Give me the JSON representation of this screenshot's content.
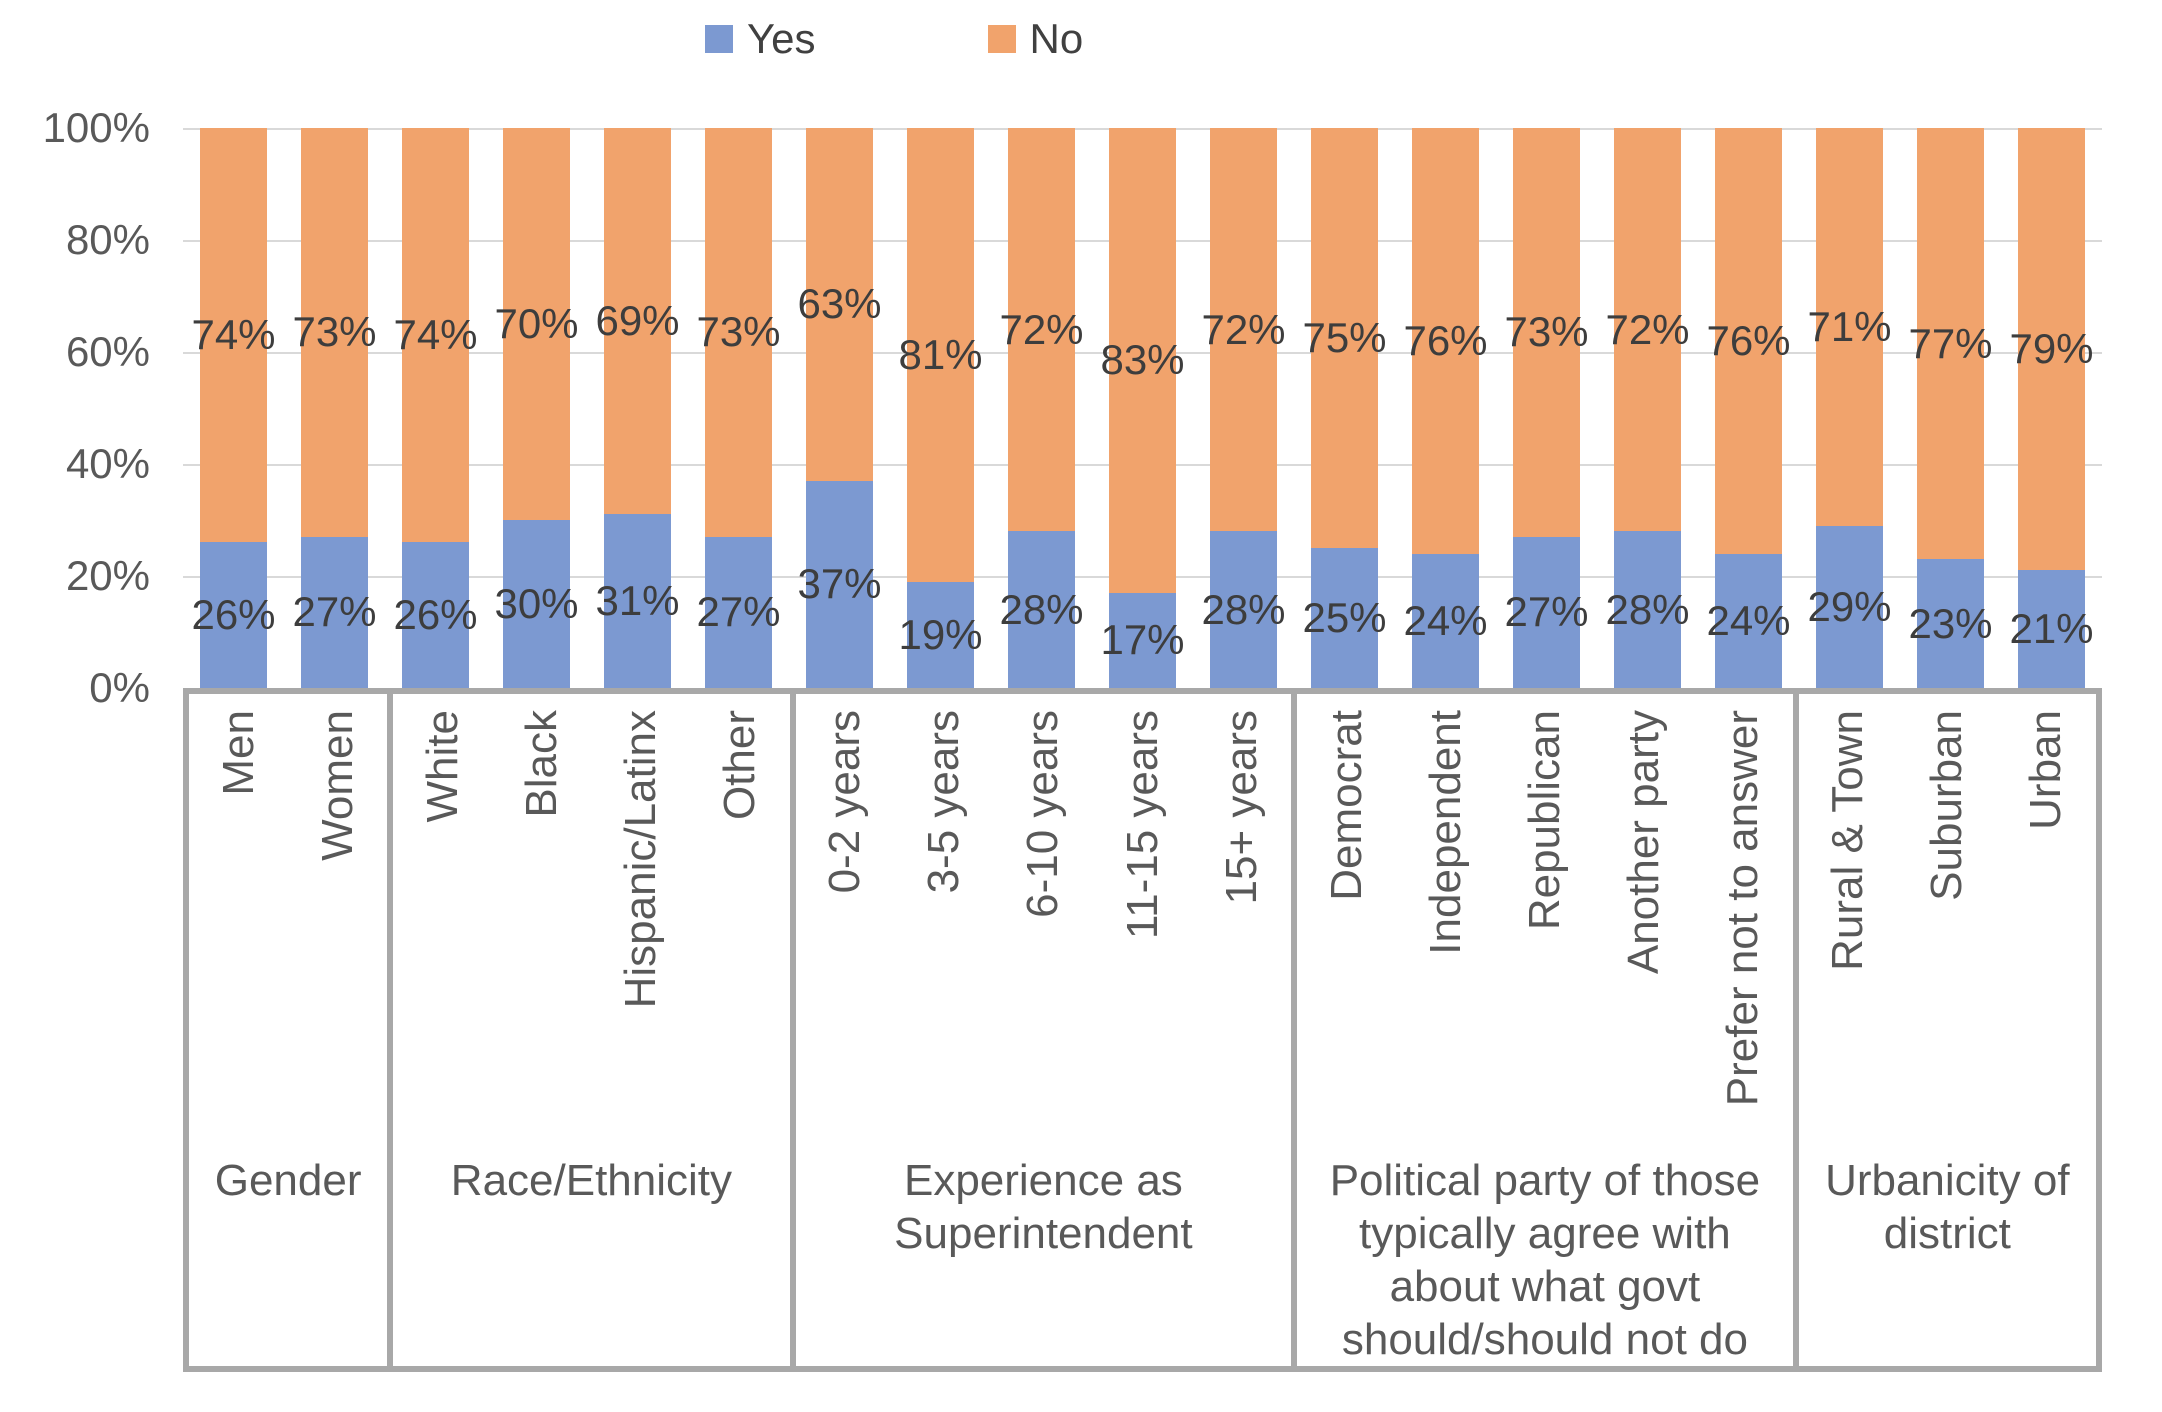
{
  "legend": {
    "items": [
      {
        "label": "Yes",
        "color": "#7C99D1"
      },
      {
        "label": "No",
        "color": "#F1A36C"
      }
    ]
  },
  "y_axis": {
    "ticks": [
      {
        "value": 100,
        "label": "100%"
      },
      {
        "value": 80,
        "label": "80%"
      },
      {
        "value": 60,
        "label": "60%"
      },
      {
        "value": 40,
        "label": "40%"
      },
      {
        "value": 20,
        "label": "20%"
      },
      {
        "value": 0,
        "label": "0%"
      }
    ]
  },
  "colors": {
    "yes": "#7C99D1",
    "no": "#F1A36C",
    "gridline": "#D9D9D9",
    "box_border": "#A8A8A8",
    "data_label_text": "#3D3D3D",
    "axis_text": "#595959"
  },
  "chart_data": {
    "type": "bar",
    "stacked": true,
    "percent_stacked": true,
    "unit": "percent",
    "ylim": [
      0,
      100
    ],
    "grid": true,
    "legend_position": "top",
    "series_names": [
      "Yes",
      "No"
    ],
    "groups": [
      {
        "label": "Gender",
        "categories": [
          "Men",
          "Women"
        ],
        "yes": [
          26,
          27
        ],
        "no": [
          74,
          73
        ],
        "yes_labels": [
          "26%",
          "27%"
        ],
        "no_labels": [
          "74%",
          "73%"
        ]
      },
      {
        "label": "Race/Ethnicity",
        "categories": [
          "White",
          "Black",
          "Hispanic/Latinx",
          "Other"
        ],
        "yes": [
          26,
          30,
          31,
          27
        ],
        "no": [
          74,
          70,
          69,
          73
        ],
        "yes_labels": [
          "26%",
          "30%",
          "31%",
          "27%"
        ],
        "no_labels": [
          "74%",
          "70%",
          "69%",
          "73%"
        ]
      },
      {
        "label": "Experience as Superintendent",
        "categories": [
          "0-2 years",
          "3-5 years",
          "6-10 years",
          "11-15 years",
          "15+ years"
        ],
        "yes": [
          37,
          19,
          28,
          17,
          28
        ],
        "no": [
          63,
          81,
          72,
          83,
          72
        ],
        "yes_labels": [
          "37%",
          "19%",
          "28%",
          "17%",
          "28%"
        ],
        "no_labels": [
          "63%",
          "81%",
          "72%",
          "83%",
          "72%"
        ]
      },
      {
        "label": "Political party of those typically agree with about what govt should/should not do",
        "categories": [
          "Democrat",
          "Independent",
          "Republican",
          "Another party",
          "Prefer not to answer"
        ],
        "yes": [
          25,
          24,
          27,
          28,
          24
        ],
        "no": [
          75,
          76,
          73,
          72,
          76
        ],
        "yes_labels": [
          "25%",
          "24%",
          "27%",
          "28%",
          "24%"
        ],
        "no_labels": [
          "75%",
          "76%",
          "73%",
          "72%",
          "76%"
        ]
      },
      {
        "label": "Urbanicity of district",
        "categories": [
          "Rural & Town",
          "Suburban",
          "Urban"
        ],
        "yes": [
          29,
          23,
          21
        ],
        "no": [
          71,
          77,
          79
        ],
        "yes_labels": [
          "29%",
          "23%",
          "21%"
        ],
        "no_labels": [
          "71%",
          "77%",
          "79%"
        ]
      }
    ]
  }
}
